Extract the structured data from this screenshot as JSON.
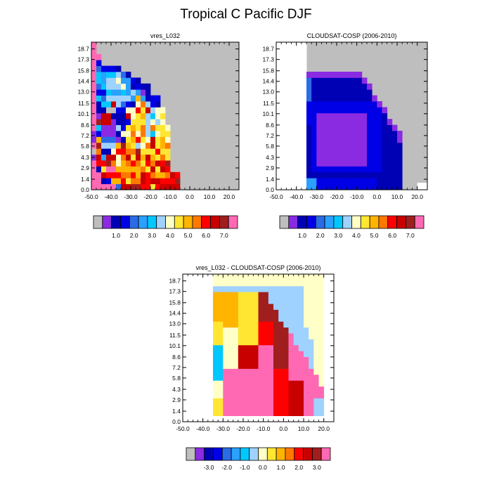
{
  "figure": {
    "title": "Tropical C Pacific DJF"
  },
  "palettes": {
    "absolute": [
      "#bebebe",
      "#8a2be2",
      "#0000b4",
      "#0000e6",
      "#2a6be6",
      "#2aa0ff",
      "#00c8ff",
      "#a0d2ff",
      "#ffffc8",
      "#ffe632",
      "#ffb400",
      "#ff7800",
      "#ff0000",
      "#c80000",
      "#a01e1e",
      "#ff69b4"
    ],
    "difference": [
      "#bebebe",
      "#8a2be2",
      "#0000b4",
      "#0000e6",
      "#2a6be6",
      "#2aa0ff",
      "#00c8ff",
      "#a0d2ff",
      "#ffffc8",
      "#ffe632",
      "#ffb400",
      "#ff7800",
      "#ff0000",
      "#c80000",
      "#a01e1e",
      "#ff69b4"
    ]
  },
  "chart_data": [
    {
      "type": "heatmap",
      "title": "vres_L032",
      "x_ticks": [
        "-50.0",
        "-40.0",
        "-30.0",
        "-20.0",
        "-10.0",
        "0.0",
        "10.0",
        "20.0"
      ],
      "xlim": [
        -50,
        25
      ],
      "y_ticks": [
        "0.0",
        "1.4",
        "2.9",
        "4.3",
        "5.8",
        "7.2",
        "8.6",
        "10.1",
        "11.5",
        "13.0",
        "14.4",
        "15.8",
        "17.3",
        "18.7"
      ],
      "x_bins": [
        -45,
        -40,
        -37.5,
        -35,
        -32.5,
        -30,
        -27.5,
        -25,
        -22.5,
        -20,
        -17.5,
        -15,
        -12.5,
        -10,
        -7.5,
        -5,
        -2.5,
        0,
        2.5,
        5,
        7.5,
        10,
        12.5,
        15,
        17.5,
        20,
        22.5
      ],
      "grid": [
        "P...........................",
        "P...........................",
        "PP..........................",
        "P3..........................",
        "P43332......................",
        "P6566742....................",
        "P657785532..................",
        "P46777852322................",
        "P33655657512................",
        "P64777775A5233..............",
        "P266D74328B732..............",
        "P22GG3388C9D788.............",
        "P1DD222D89A7689.............",
        "PEDD12239997878.............",
        "P6111739A9B7B998............",
        "M3111288B8B76899............",
        "MA444129AC98D9A8............",
        "FE777AEA978BD9AB............",
        "GB228CCBBE999C99............",
        "HD5DD8BD9DADA9B9............",
        "PCCEB8ABCB9CBDCE............",
        "P29FFAAAAAB9D9DC............",
        "PPDCCCBBCADCBAABDC..........",
        "PP23AAC9BBDCDDCCCE..........",
        "PPPPP4DDEECC9CDDDD.........."
      ],
      "colorbar": {
        "labels": [
          "1.0",
          "2.0",
          "3.0",
          "4.0",
          "5.0",
          "6.0",
          "7.0"
        ]
      }
    },
    {
      "type": "heatmap",
      "title": "CLOUDSAT-COSP (2006-2010)",
      "x_ticks": [
        "-50.0",
        "-40.0",
        "-30.0",
        "-20.0",
        "-10.0",
        "0.0",
        "10.0",
        "20.0"
      ],
      "xlim": [
        -50,
        25
      ],
      "y_ticks": [
        "0.0",
        "1.4",
        "2.9",
        "4.3",
        "5.8",
        "7.2",
        "8.6",
        "10.1",
        "11.5",
        "13.0",
        "14.4",
        "15.8",
        "17.3",
        "18.7"
      ],
      "colorbar": {
        "labels": [
          "1.0",
          "2.0",
          "3.0",
          "4.0",
          "5.0",
          "6.0",
          "7.0"
        ]
      }
    },
    {
      "type": "heatmap",
      "title": "vres_L032 - CLOUDSAT-COSP (2006-2010)",
      "x_ticks": [
        "-50.0",
        "-40.0",
        "-30.0",
        "-20.0",
        "-10.0",
        "0.0",
        "10.0",
        "20.0"
      ],
      "xlim": [
        -50,
        25
      ],
      "y_ticks": [
        "0.0",
        "1.4",
        "2.9",
        "4.3",
        "5.8",
        "7.2",
        "8.6",
        "10.1",
        "11.5",
        "13.0",
        "14.4",
        "15.8",
        "17.3",
        "18.7"
      ],
      "colorbar": {
        "labels": [
          "-3.0",
          "-2.0",
          "-1.0",
          "0.0",
          "1.0",
          "2.0",
          "3.0"
        ]
      }
    }
  ]
}
